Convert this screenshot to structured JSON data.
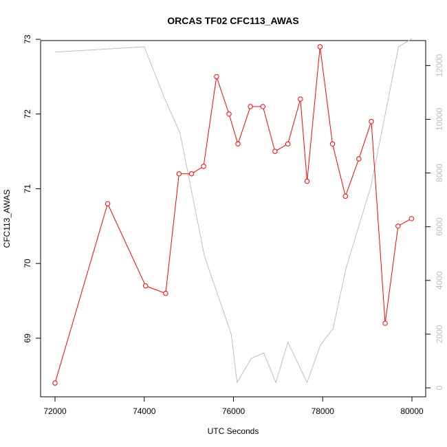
{
  "chart_data": {
    "type": "line",
    "title": "ORCAS TF02 CFC113_AWAS",
    "xlabel": "UTC Seconds",
    "ylabel": "CFC113_AWAS",
    "y2label": "",
    "xlim": [
      72000,
      80000
    ],
    "ylim": [
      68.4,
      72.9
    ],
    "y2lim": [
      0,
      12700
    ],
    "x_ticks": [
      72000,
      74000,
      76000,
      78000,
      80000
    ],
    "y_ticks": [
      69,
      70,
      71,
      72,
      73
    ],
    "y2_ticks": [
      0,
      2000,
      4000,
      6000,
      8000,
      10000,
      12000
    ],
    "grid": false,
    "legend": "none",
    "colors": {
      "primary": "#ff0000",
      "secondary": "#bebebe",
      "axis": "#000000"
    },
    "series": [
      {
        "axis": "left",
        "marker": "open-circle",
        "x": [
          72000,
          73180,
          74030,
          74480,
          74780,
          75060,
          75330,
          75620,
          75900,
          76100,
          76380,
          76660,
          76930,
          77220,
          77500,
          77650,
          77940,
          78220,
          78510,
          78810,
          79090,
          79400,
          79690,
          79990
        ],
        "y": [
          68.4,
          70.8,
          69.7,
          69.6,
          71.2,
          71.2,
          71.3,
          72.5,
          72.0,
          71.6,
          72.1,
          72.1,
          71.5,
          71.6,
          72.2,
          71.1,
          72.9,
          71.6,
          70.9,
          71.4,
          71.9,
          69.2,
          70.5,
          70.6
        ]
      },
      {
        "axis": "right",
        "marker": "none",
        "x": [
          72000,
          74000,
          74450,
          74800,
          75350,
          75950,
          76080,
          76400,
          76680,
          76950,
          77220,
          77650,
          77950,
          78230,
          78530,
          79080,
          79700,
          80000
        ],
        "y": [
          12500,
          12700,
          10800,
          9500,
          4900,
          2000,
          200,
          1100,
          1300,
          200,
          1700,
          200,
          1600,
          2200,
          4500,
          7500,
          12700,
          13000
        ]
      }
    ]
  }
}
